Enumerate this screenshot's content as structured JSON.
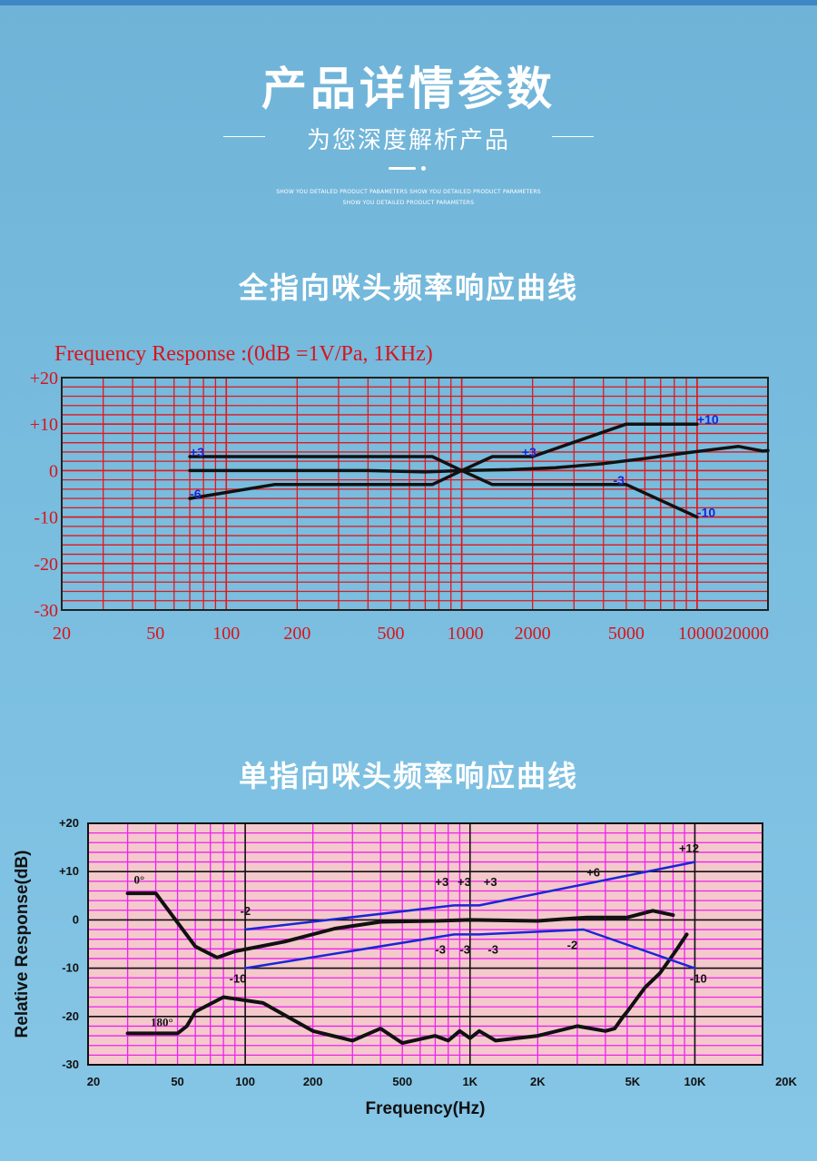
{
  "header": {
    "title": "产品详情参数",
    "subtitle": "为您深度解析产品",
    "fine_line_1": "SHOW YOU DETAILED PRODUCT PABAMETERS  SHOW YOU DETAILED PRODUCT PARAMETERS",
    "fine_line_2": "SHOW YOU DETAILED PRODUCT PARAMETERS"
  },
  "sections": {
    "omni_title": "全指向咪头频率响应曲线",
    "uni_title": "单指向咪头频率响应曲线"
  },
  "colors": {
    "background": "#78bbde",
    "chart1_grid": "#e0181c",
    "chart1_text": "#d8141a",
    "chart2_grid": "#ee22ee",
    "chart2_bg": "#f4c9cc",
    "curve": "#111111",
    "tolerance": "#1b26d6"
  },
  "chart_data": [
    {
      "type": "line",
      "title": "Frequency  Response :(0dB =1V/Pa, 1KHz)",
      "x_scale": "log",
      "x_ticks": [
        20,
        50,
        100,
        200,
        500,
        1000,
        2000,
        5000,
        10000,
        20000
      ],
      "x_tick_labels": [
        "20",
        "50",
        "100",
        "200",
        "500",
        "1000",
        "2000",
        "5000",
        "10000",
        "20000"
      ],
      "y_ticks": [
        20,
        10,
        0,
        -10,
        -20,
        -30
      ],
      "y_tick_labels": [
        "+20",
        "+10",
        "0",
        "-10",
        "-20",
        "-30"
      ],
      "ylim": [
        -30,
        20
      ],
      "xlim": [
        20,
        20000
      ],
      "grid": true,
      "series": [
        {
          "role": "response",
          "x": [
            70,
            400,
            700,
            1000,
            1600,
            2500,
            4000,
            6000,
            9000,
            12000,
            15000,
            19000,
            20000
          ],
          "y": [
            0,
            0,
            -0.3,
            0,
            0.2,
            0.6,
            1.5,
            2.6,
            3.8,
            4.6,
            5.2,
            4.2,
            4.3
          ]
        },
        {
          "role": "upper-limit",
          "x": [
            70,
            750,
            1000,
            1350,
            2000,
            5000,
            10000
          ],
          "y": [
            3,
            3,
            0,
            3,
            3,
            10,
            10
          ]
        },
        {
          "role": "lower-limit",
          "x": [
            70,
            160,
            750,
            1000,
            1350,
            5000,
            10000
          ],
          "y": [
            -6,
            -3,
            -3,
            0,
            -3,
            -3,
            -10
          ]
        }
      ],
      "annotations": [
        {
          "text": "+10",
          "x": 10000,
          "y": 10
        },
        {
          "text": "+3",
          "x": 70,
          "y": 3
        },
        {
          "text": "+3",
          "x": 1800,
          "y": 3
        },
        {
          "text": "-6",
          "x": 70,
          "y": -6
        },
        {
          "text": "-3",
          "x": 4400,
          "y": -3
        },
        {
          "text": "-10",
          "x": 10000,
          "y": -10
        }
      ]
    },
    {
      "type": "line",
      "xlabel": "Frequency(Hz)",
      "ylabel": "Relative Response(dB)",
      "x_scale": "log",
      "x_ticks": [
        20,
        50,
        100,
        200,
        500,
        1000,
        2000,
        5000,
        10000,
        20000
      ],
      "x_tick_labels": [
        "20",
        "50",
        "100",
        "200",
        "500",
        "1K",
        "2K",
        "5K",
        "10K",
        "20K"
      ],
      "y_ticks": [
        20,
        10,
        0,
        -10,
        -20,
        -30
      ],
      "y_tick_labels": [
        "+20",
        "+10",
        "0",
        "-10",
        "-20",
        "-30"
      ],
      "ylim": [
        -30,
        20
      ],
      "xlim": [
        20,
        20000
      ],
      "grid": true,
      "series": [
        {
          "name": "0°",
          "role": "response",
          "x": [
            30,
            40,
            60,
            75,
            90,
            150,
            250,
            400,
            700,
            1000,
            2000,
            3300,
            5000,
            6500,
            8000
          ],
          "y": [
            5.5,
            5.5,
            -5.5,
            -7.8,
            -6.5,
            -4.5,
            -1.8,
            -0.4,
            -0.2,
            0,
            -0.2,
            0.5,
            0.5,
            1.9,
            1
          ]
        },
        {
          "name": "180°",
          "role": "response",
          "x": [
            30,
            50,
            55,
            60,
            80,
            120,
            200,
            300,
            400,
            500,
            700,
            800,
            900,
            1000,
            1100,
            1300,
            2000,
            3000,
            4000,
            4400,
            4800,
            5000,
            6000,
            7000,
            8200,
            9200
          ],
          "y": [
            -23.5,
            -23.5,
            -22,
            -19,
            -16,
            -17.2,
            -23,
            -25,
            -22.5,
            -25.5,
            -24,
            -25,
            -23,
            -24.5,
            -23,
            -25,
            -24,
            -22,
            -23,
            -22.5,
            -20,
            -19,
            -14,
            -11,
            -6.5,
            -3
          ]
        },
        {
          "role": "upper-limit",
          "x": [
            100,
            850,
            950,
            1100,
            10000
          ],
          "y": [
            -2,
            3,
            3,
            3,
            12
          ]
        },
        {
          "role": "lower-limit",
          "x": [
            100,
            850,
            950,
            1100,
            3200,
            10000
          ],
          "y": [
            -10,
            -3,
            -3,
            -3,
            -2,
            -10
          ]
        }
      ],
      "annotations": [
        {
          "text": "0°",
          "x": 32,
          "y": 7.5
        },
        {
          "text": "180°",
          "x": 38,
          "y": -22
        },
        {
          "text": "-2",
          "x": 95,
          "y": 1
        },
        {
          "text": "-10",
          "x": 85,
          "y": -13
        },
        {
          "text": "+3",
          "x": 700,
          "y": 7
        },
        {
          "text": "+3",
          "x": 880,
          "y": 7
        },
        {
          "text": "+3",
          "x": 1150,
          "y": 7
        },
        {
          "text": "-3",
          "x": 700,
          "y": -7
        },
        {
          "text": "-3",
          "x": 900,
          "y": -7
        },
        {
          "text": "-3",
          "x": 1200,
          "y": -7
        },
        {
          "text": "+6",
          "x": 3300,
          "y": 9
        },
        {
          "text": "-2",
          "x": 2700,
          "y": -6
        },
        {
          "text": "+12",
          "x": 8500,
          "y": 14
        },
        {
          "text": "-10",
          "x": 9500,
          "y": -13
        }
      ]
    }
  ]
}
